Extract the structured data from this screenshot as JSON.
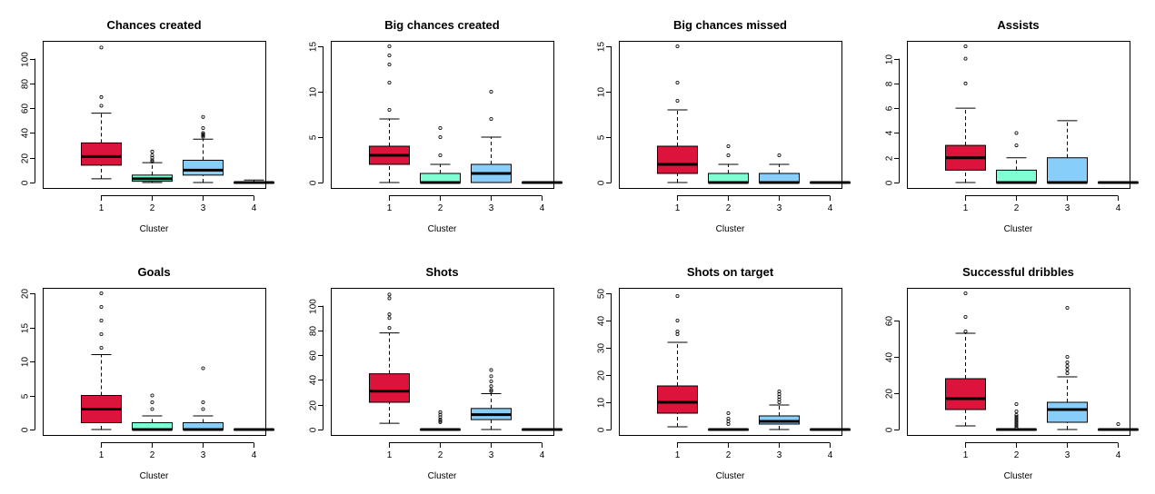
{
  "colors": {
    "c1": "#DC143C",
    "c2": "#7FFFD4",
    "c3": "#87CEFA",
    "c4": "#FFFFFF"
  },
  "chart_data": [
    {
      "type": "boxplot",
      "title": "Chances created",
      "xlabel": "Cluster",
      "ylabel": "",
      "categories": [
        "1",
        "2",
        "3",
        "4"
      ],
      "ylim": [
        0,
        110
      ],
      "yticks": [
        0,
        20,
        40,
        60,
        80,
        100
      ],
      "boxes": [
        {
          "min": 3,
          "q1": 14,
          "median": 21,
          "q3": 32,
          "max": 56,
          "outliers": [
            62,
            69,
            109
          ]
        },
        {
          "min": 0,
          "q1": 1,
          "median": 3,
          "q3": 6,
          "max": 16,
          "outliers": [
            17,
            18,
            20,
            22,
            25
          ]
        },
        {
          "min": 0,
          "q1": 6,
          "median": 10,
          "q3": 18,
          "max": 35,
          "outliers": [
            37,
            38,
            39,
            40,
            44,
            53
          ]
        },
        {
          "min": 0,
          "q1": 0,
          "median": 0,
          "q3": 0,
          "max": 2,
          "outliers": []
        }
      ]
    },
    {
      "type": "boxplot",
      "title": "Big chances created",
      "xlabel": "Cluster",
      "ylabel": "",
      "categories": [
        "1",
        "2",
        "3",
        "4"
      ],
      "ylim": [
        0,
        15
      ],
      "yticks": [
        0,
        5,
        10,
        15
      ],
      "boxes": [
        {
          "min": 0,
          "q1": 2,
          "median": 3,
          "q3": 4,
          "max": 7,
          "outliers": [
            8,
            11,
            13,
            14,
            15
          ]
        },
        {
          "min": 0,
          "q1": 0,
          "median": 0,
          "q3": 1,
          "max": 2,
          "outliers": [
            3,
            5,
            6
          ]
        },
        {
          "min": 0,
          "q1": 0,
          "median": 1,
          "q3": 2,
          "max": 5,
          "outliers": [
            7,
            10
          ]
        },
        {
          "min": 0,
          "q1": 0,
          "median": 0,
          "q3": 0,
          "max": 0,
          "outliers": []
        }
      ]
    },
    {
      "type": "boxplot",
      "title": "Big chances missed",
      "xlabel": "Cluster",
      "ylabel": "",
      "categories": [
        "1",
        "2",
        "3",
        "4"
      ],
      "ylim": [
        0,
        15
      ],
      "yticks": [
        0,
        5,
        10,
        15
      ],
      "boxes": [
        {
          "min": 0,
          "q1": 1,
          "median": 2,
          "q3": 4,
          "max": 8,
          "outliers": [
            9,
            11,
            15
          ]
        },
        {
          "min": 0,
          "q1": 0,
          "median": 0,
          "q3": 1,
          "max": 2,
          "outliers": [
            3,
            4
          ]
        },
        {
          "min": 0,
          "q1": 0,
          "median": 0,
          "q3": 1,
          "max": 2,
          "outliers": [
            3
          ]
        },
        {
          "min": 0,
          "q1": 0,
          "median": 0,
          "q3": 0,
          "max": 0,
          "outliers": []
        }
      ]
    },
    {
      "type": "boxplot",
      "title": "Assists",
      "xlabel": "Cluster",
      "ylabel": "",
      "categories": [
        "1",
        "2",
        "3",
        "4"
      ],
      "ylim": [
        0,
        11
      ],
      "yticks": [
        0,
        2,
        4,
        6,
        8,
        10
      ],
      "boxes": [
        {
          "min": 0,
          "q1": 1,
          "median": 2,
          "q3": 3,
          "max": 6,
          "outliers": [
            8,
            10,
            11
          ]
        },
        {
          "min": 0,
          "q1": 0,
          "median": 0,
          "q3": 1,
          "max": 2,
          "outliers": [
            3,
            4
          ]
        },
        {
          "min": 0,
          "q1": 0,
          "median": 0,
          "q3": 2,
          "max": 5,
          "outliers": []
        },
        {
          "min": 0,
          "q1": 0,
          "median": 0,
          "q3": 0,
          "max": 0,
          "outliers": []
        }
      ]
    },
    {
      "type": "boxplot",
      "title": "Goals",
      "xlabel": "Cluster",
      "ylabel": "",
      "categories": [
        "1",
        "2",
        "3",
        "4"
      ],
      "ylim": [
        0,
        20
      ],
      "yticks": [
        0,
        5,
        10,
        15,
        20
      ],
      "boxes": [
        {
          "min": 0,
          "q1": 1,
          "median": 3,
          "q3": 5,
          "max": 11,
          "outliers": [
            12,
            14,
            16,
            18,
            20
          ]
        },
        {
          "min": 0,
          "q1": 0,
          "median": 0,
          "q3": 1,
          "max": 2,
          "outliers": [
            3,
            4,
            5
          ]
        },
        {
          "min": 0,
          "q1": 0,
          "median": 0,
          "q3": 1,
          "max": 2,
          "outliers": [
            3,
            4,
            9
          ]
        },
        {
          "min": 0,
          "q1": 0,
          "median": 0,
          "q3": 0,
          "max": 0,
          "outliers": []
        }
      ]
    },
    {
      "type": "boxplot",
      "title": "Shots",
      "xlabel": "Cluster",
      "ylabel": "",
      "categories": [
        "1",
        "2",
        "3",
        "4"
      ],
      "ylim": [
        0,
        110
      ],
      "yticks": [
        0,
        20,
        40,
        60,
        80,
        100
      ],
      "boxes": [
        {
          "min": 5,
          "q1": 22,
          "median": 31,
          "q3": 45,
          "max": 78,
          "outliers": [
            82,
            90,
            93,
            106,
            109
          ]
        },
        {
          "min": 0,
          "q1": 0,
          "median": 0,
          "q3": 0,
          "max": 0,
          "outliers": [
            6,
            7,
            8,
            10,
            12,
            14
          ]
        },
        {
          "min": 0,
          "q1": 8,
          "median": 12,
          "q3": 17,
          "max": 29,
          "outliers": [
            31,
            32,
            35,
            39,
            43,
            48
          ]
        },
        {
          "min": 0,
          "q1": 0,
          "median": 0,
          "q3": 0,
          "max": 0,
          "outliers": []
        }
      ]
    },
    {
      "type": "boxplot",
      "title": "Shots on target",
      "xlabel": "Cluster",
      "ylabel": "",
      "categories": [
        "1",
        "2",
        "3",
        "4"
      ],
      "ylim": [
        0,
        50
      ],
      "yticks": [
        0,
        10,
        20,
        30,
        40,
        50
      ],
      "boxes": [
        {
          "min": 1,
          "q1": 6,
          "median": 10,
          "q3": 16,
          "max": 32,
          "outliers": [
            35,
            36,
            40,
            49
          ]
        },
        {
          "min": 0,
          "q1": 0,
          "median": 0,
          "q3": 0,
          "max": 0,
          "outliers": [
            2,
            3,
            4,
            6
          ]
        },
        {
          "min": 0,
          "q1": 2,
          "median": 3,
          "q3": 5,
          "max": 9,
          "outliers": [
            10,
            11,
            12,
            13,
            14
          ]
        },
        {
          "min": 0,
          "q1": 0,
          "median": 0,
          "q3": 0,
          "max": 0,
          "outliers": []
        }
      ]
    },
    {
      "type": "boxplot",
      "title": "Successful dribbles",
      "xlabel": "Cluster",
      "ylabel": "",
      "categories": [
        "1",
        "2",
        "3",
        "4"
      ],
      "ylim": [
        0,
        75
      ],
      "yticks": [
        0,
        20,
        40,
        60
      ],
      "boxes": [
        {
          "min": 2,
          "q1": 11,
          "median": 17,
          "q3": 28,
          "max": 53,
          "outliers": [
            54,
            62,
            75
          ]
        },
        {
          "min": 0,
          "q1": 0,
          "median": 0,
          "q3": 0,
          "max": 0,
          "outliers": [
            1,
            2,
            3,
            4,
            5,
            6,
            7,
            8,
            10,
            14
          ]
        },
        {
          "min": 0,
          "q1": 4,
          "median": 11,
          "q3": 15,
          "max": 29,
          "outliers": [
            31,
            33,
            35,
            37,
            40,
            67
          ]
        },
        {
          "min": 0,
          "q1": 0,
          "median": 0,
          "q3": 0,
          "max": 0,
          "outliers": [
            3
          ]
        }
      ]
    }
  ]
}
